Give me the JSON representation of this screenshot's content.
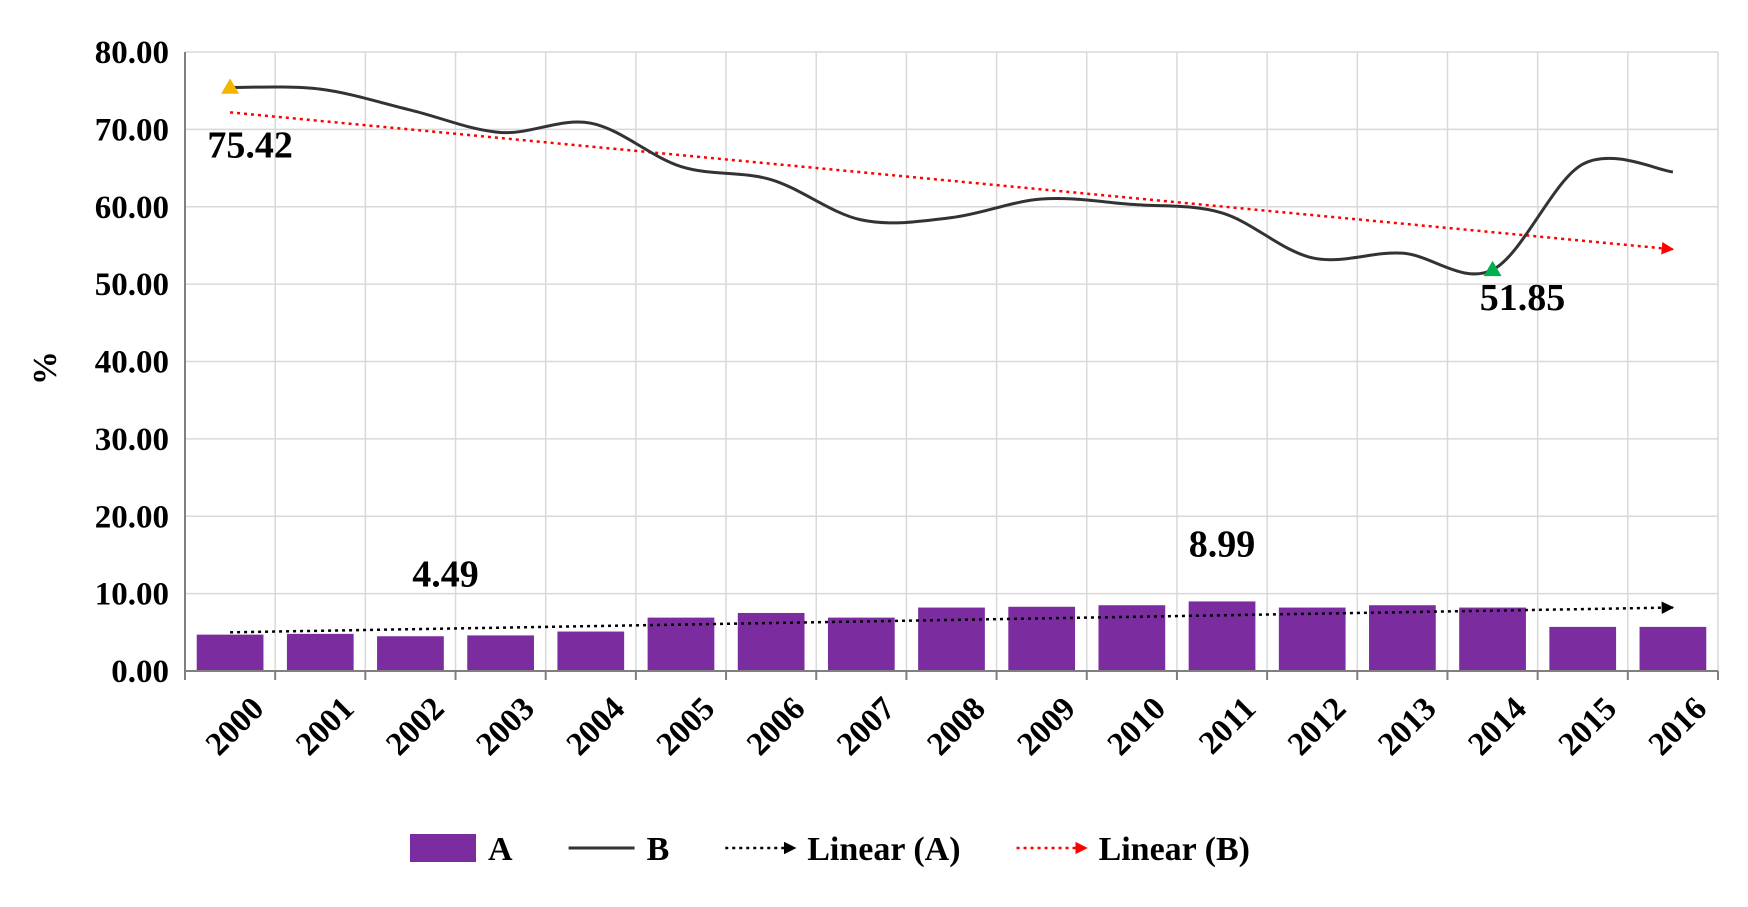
{
  "chart_data": {
    "type": "bar",
    "title": "",
    "xlabel": "",
    "ylabel": "%",
    "ylim": [
      0,
      80
    ],
    "yticks": [
      "0.00",
      "10.00",
      "20.00",
      "30.00",
      "40.00",
      "50.00",
      "60.00",
      "70.00",
      "80.00"
    ],
    "categories": [
      "2000",
      "2001",
      "2002",
      "2003",
      "2004",
      "2005",
      "2006",
      "2007",
      "2008",
      "2009",
      "2010",
      "2011",
      "2012",
      "2013",
      "2014",
      "2015",
      "2016"
    ],
    "series": [
      {
        "name": "A",
        "kind": "bar",
        "color": "#7B2C9E",
        "values": [
          4.7,
          4.8,
          4.49,
          4.6,
          5.1,
          6.9,
          7.5,
          6.9,
          8.2,
          8.3,
          8.5,
          8.99,
          8.2,
          8.5,
          8.2,
          5.7,
          5.7
        ]
      },
      {
        "name": "B",
        "kind": "line",
        "color": "#333333",
        "values": [
          75.42,
          75.2,
          72.5,
          69.6,
          70.8,
          65.2,
          63.5,
          58.3,
          58.6,
          61.0,
          60.3,
          59.2,
          53.4,
          54.0,
          51.85,
          65.5,
          64.5
        ]
      }
    ],
    "trendlines": [
      {
        "name": "Linear (A)",
        "color": "#000000",
        "start": 5.0,
        "end": 8.2
      },
      {
        "name": "Linear (B)",
        "color": "#FF0000",
        "start": 72.2,
        "end": 54.5
      }
    ],
    "annotations": [
      {
        "text": "75.42",
        "category": "2000",
        "value": 75.42,
        "marker_color": "#F2B600"
      },
      {
        "text": "51.85",
        "category": "2014",
        "value": 51.85,
        "marker_color": "#00B050"
      },
      {
        "text": "4.49",
        "category": "2002",
        "value": 4.49
      },
      {
        "text": "8.99",
        "category": "2011",
        "value": 8.99
      }
    ],
    "legend": {
      "position": "bottom",
      "items": [
        "A",
        "B",
        "Linear (A)",
        "Linear (B)"
      ]
    }
  }
}
